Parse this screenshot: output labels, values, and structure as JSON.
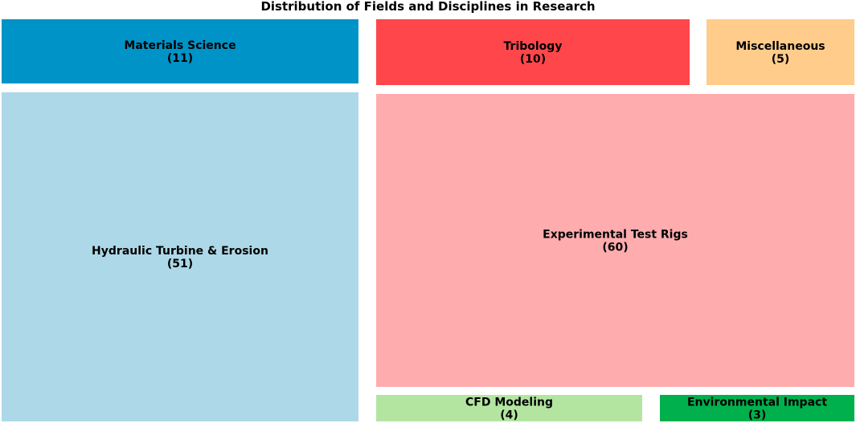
{
  "chart_data": {
    "type": "treemap",
    "title": "Distribution of Fields and Disciplines in Research",
    "tiles": [
      {
        "label": "Materials Science",
        "value": 11,
        "color": "#0093C7"
      },
      {
        "label": "Hydraulic Turbine & Erosion",
        "value": 51,
        "color": "#ADD8E8"
      },
      {
        "label": "Tribology",
        "value": 10,
        "color": "#FF474B"
      },
      {
        "label": "Miscellaneous",
        "value": 5,
        "color": "#FFCC8C"
      },
      {
        "label": "Experimental Test Rigs",
        "value": 60,
        "color": "#FFACAF"
      },
      {
        "label": "CFD Modeling",
        "value": 4,
        "color": "#B3E5A1"
      },
      {
        "label": "Environmental Impact",
        "value": 3,
        "color": "#00B04C"
      }
    ]
  }
}
